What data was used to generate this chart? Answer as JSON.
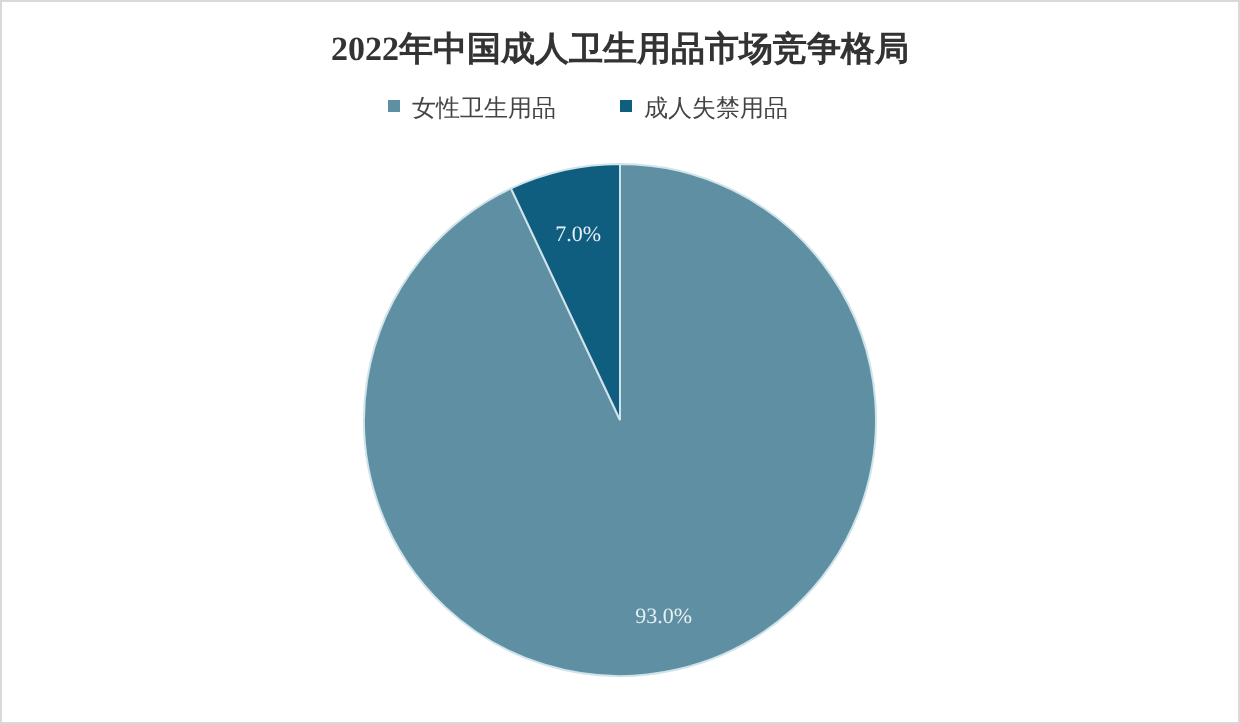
{
  "chart_data": {
    "type": "pie",
    "title": "2022年中国成人卫生用品市场竞争格局",
    "categories": [
      "女性卫生用品",
      "成人失禁用品"
    ],
    "values": [
      93.0,
      7.0
    ],
    "colors": [
      "#5f8fa3",
      "#0f5e80"
    ],
    "value_labels": [
      "93.0%",
      "7.0%"
    ],
    "legend": "top"
  }
}
